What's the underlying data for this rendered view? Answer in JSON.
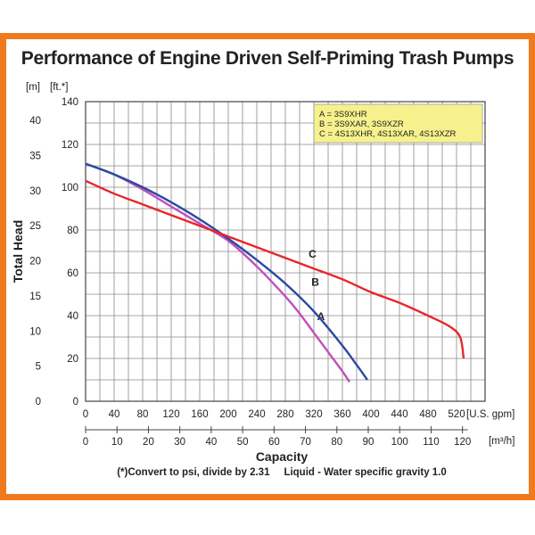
{
  "chart_data": {
    "type": "line",
    "title": "Performance of Engine Driven Self-Priming Trash Pumps",
    "ylabel": "Total Head",
    "xlabel": "Capacity",
    "x_unit": "[U.S. gpm]",
    "x2_unit": "[m³/h]",
    "y_unit_ft": "[ft.*]",
    "y_unit_m": "[m]",
    "footnote": "(*)Convert to psi, divide by 2.31     Liquid - Water specific gravity 1.0",
    "xlim": [
      0,
      560
    ],
    "ylim": [
      0,
      140
    ],
    "x_ticks": [
      0,
      40,
      80,
      120,
      160,
      200,
      240,
      280,
      320,
      360,
      400,
      440,
      480,
      520
    ],
    "y_ticks": [
      0,
      20,
      40,
      60,
      80,
      100,
      120,
      140
    ],
    "m3h_ticks": [
      0,
      10,
      20,
      30,
      40,
      50,
      60,
      70,
      80,
      90,
      100,
      110,
      120
    ],
    "m_ticks": [
      0,
      5,
      10,
      15,
      20,
      25,
      30,
      35,
      40
    ],
    "grid": true,
    "legend_position": "top-right",
    "legend": [
      "A = 3S9XHR",
      "B = 3S9XAR, 3S9XZR",
      "C = 4S13XHR, 4S13XAR, 4S13XZR"
    ],
    "series": [
      {
        "name": "A",
        "color": "#c04fbc",
        "x": [
          0,
          40,
          80,
          120,
          160,
          200,
          240,
          280,
          300,
          320,
          340,
          360,
          370
        ],
        "y": [
          111,
          106,
          99,
          91,
          83,
          75,
          63,
          49,
          41,
          32,
          23,
          14,
          9
        ]
      },
      {
        "name": "B",
        "color": "#2a4a9e",
        "x": [
          0,
          40,
          80,
          120,
          160,
          200,
          240,
          280,
          320,
          360,
          380,
          395
        ],
        "y": [
          111,
          106,
          100,
          93,
          85,
          76,
          66,
          55,
          42,
          26,
          17,
          10
        ]
      },
      {
        "name": "C",
        "color": "#e8262a",
        "x": [
          0,
          40,
          80,
          120,
          160,
          200,
          240,
          280,
          320,
          360,
          400,
          440,
          480,
          510,
          525,
          530
        ],
        "y": [
          103,
          97,
          92,
          87,
          82,
          77,
          72,
          67,
          62,
          57,
          51,
          46,
          40,
          35,
          30,
          20
        ]
      }
    ]
  }
}
